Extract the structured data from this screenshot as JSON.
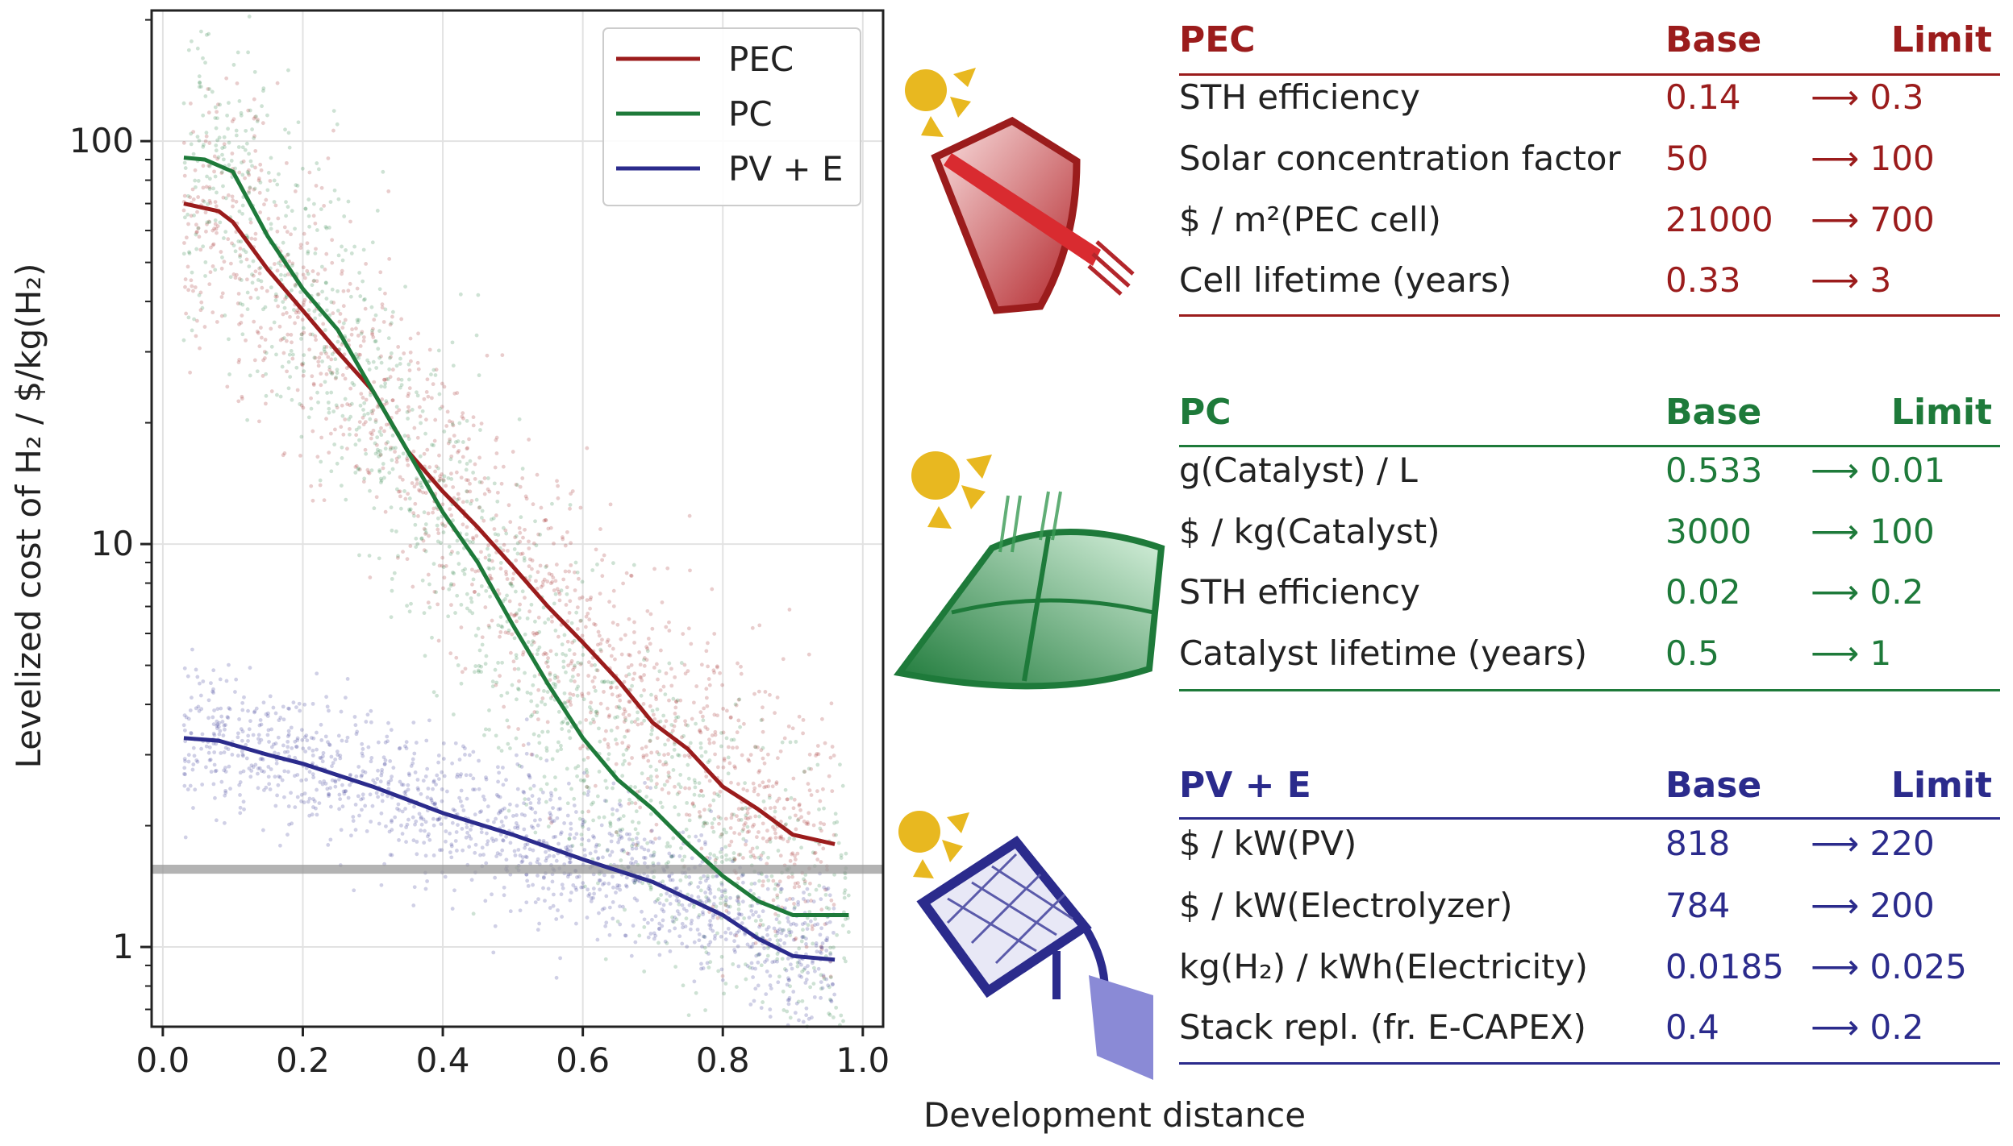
{
  "colors": {
    "pec": "#9b1c1c",
    "pc": "#1e7a3a",
    "pv": "#2b2b8c",
    "band": "#9a9a9a"
  },
  "chart_data": {
    "type": "line",
    "xlabel": "Development distance",
    "ylabel": "Levelized cost of H₂ / $/kg(H₂)",
    "xlim": [
      -0.016,
      1.029
    ],
    "ylim": [
      0.634,
      211
    ],
    "yscale": "log",
    "grid": true,
    "legend_placement": "top-right",
    "xticks": [
      "0.0",
      "0.2",
      "0.4",
      "0.6",
      "0.8",
      "1.0"
    ],
    "xtick_values": [
      0,
      0.2,
      0.4,
      0.6,
      0.8,
      1.0
    ],
    "yticks": [
      "1",
      "10",
      "100"
    ],
    "ytick_values": [
      1,
      10,
      100
    ],
    "reference_band": {
      "y_low": 1.52,
      "y_high": 1.6
    },
    "series": [
      {
        "name": "PEC",
        "color": "#9b1c1c",
        "x": [
          0.03,
          0.08,
          0.1,
          0.15,
          0.2,
          0.25,
          0.3,
          0.35,
          0.4,
          0.45,
          0.5,
          0.55,
          0.6,
          0.65,
          0.7,
          0.75,
          0.8,
          0.85,
          0.9,
          0.96
        ],
        "y": [
          70,
          67,
          63,
          48,
          38,
          30,
          24,
          17,
          13.5,
          11,
          8.8,
          7,
          5.7,
          4.6,
          3.6,
          3.1,
          2.5,
          2.2,
          1.9,
          1.8
        ]
      },
      {
        "name": "PC",
        "color": "#1e7a3a",
        "x": [
          0.03,
          0.06,
          0.1,
          0.15,
          0.2,
          0.25,
          0.3,
          0.35,
          0.4,
          0.45,
          0.5,
          0.55,
          0.6,
          0.65,
          0.7,
          0.75,
          0.8,
          0.85,
          0.9,
          0.98
        ],
        "y": [
          91,
          90,
          84,
          58,
          43,
          34,
          24,
          17,
          12,
          9,
          6.3,
          4.5,
          3.3,
          2.6,
          2.2,
          1.8,
          1.5,
          1.3,
          1.2,
          1.2
        ]
      },
      {
        "name": "PV + E",
        "color": "#2b2b8c",
        "x": [
          0.03,
          0.08,
          0.15,
          0.2,
          0.3,
          0.4,
          0.5,
          0.6,
          0.7,
          0.8,
          0.85,
          0.9,
          0.96
        ],
        "y": [
          3.3,
          3.25,
          3.0,
          2.85,
          2.5,
          2.15,
          1.9,
          1.65,
          1.45,
          1.2,
          1.05,
          0.95,
          0.93
        ]
      }
    ]
  },
  "tables": [
    {
      "key": "pec",
      "title": "PEC",
      "base_label": "Base",
      "limit_label": "Limit",
      "rows": [
        {
          "label": "STH efficiency",
          "base": "0.14",
          "limit": "⟶ 0.3"
        },
        {
          "label": "Solar concentration factor",
          "base": "50",
          "limit": "⟶ 100"
        },
        {
          "label": "$ / m²(PEC cell)",
          "base": "21000",
          "limit": "⟶ 700"
        },
        {
          "label": "Cell lifetime (years)",
          "base": "0.33",
          "limit": "⟶ 3"
        }
      ]
    },
    {
      "key": "pc",
      "title": "PC",
      "base_label": "Base",
      "limit_label": "Limit",
      "rows": [
        {
          "label": "g(Catalyst) / L",
          "base": "0.533",
          "limit": "⟶ 0.01"
        },
        {
          "label": "$ / kg(Catalyst)",
          "base": "3000",
          "limit": "⟶ 100"
        },
        {
          "label": "STH efficiency",
          "base": "0.02",
          "limit": "⟶ 0.2"
        },
        {
          "label": "Catalyst lifetime (years)",
          "base": "0.5",
          "limit": "⟶ 1"
        }
      ]
    },
    {
      "key": "pv",
      "title": "PV + E",
      "base_label": "Base",
      "limit_label": "Limit",
      "rows": [
        {
          "label": "$ / kW(PV)",
          "base": "818",
          "limit": "⟶ 220"
        },
        {
          "label": "$ / kW(Electrolyzer)",
          "base": "784",
          "limit": "⟶ 200"
        },
        {
          "label": "kg(H₂) / kWh(Electricity)",
          "base": "0.0185",
          "limit": "⟶ 0.025"
        },
        {
          "label": "Stack repl. (fr. E-CAPEX)",
          "base": "0.4",
          "limit": "⟶ 0.2"
        }
      ]
    }
  ],
  "icons": [
    "pec-concentrator-icon",
    "pc-catalyst-reactor-icon",
    "pv-electrolyzer-icon",
    "sun-icon"
  ]
}
